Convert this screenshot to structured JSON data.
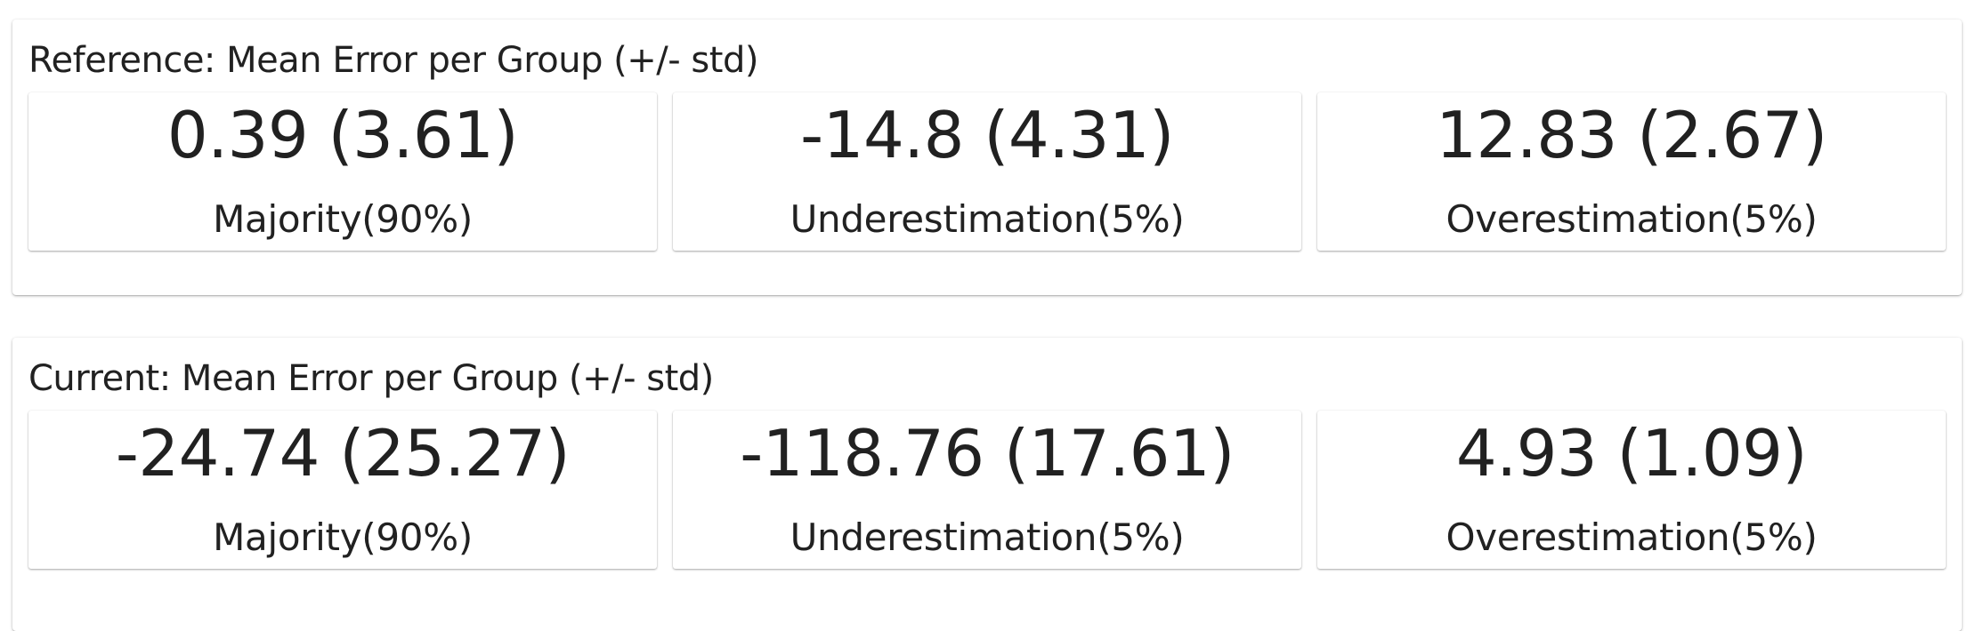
{
  "panels": [
    {
      "title": "Reference: Mean Error per Group (+/- std)",
      "cards": [
        {
          "value": "0.39 (3.61)",
          "label": "Majority(90%)"
        },
        {
          "value": "-14.8 (4.31)",
          "label": "Underestimation(5%)"
        },
        {
          "value": "12.83 (2.67)",
          "label": "Overestimation(5%)"
        }
      ]
    },
    {
      "title": "Current: Mean Error per Group (+/- std)",
      "cards": [
        {
          "value": "-24.74 (25.27)",
          "label": "Majority(90%)"
        },
        {
          "value": "-118.76 (17.61)",
          "label": "Underestimation(5%)"
        },
        {
          "value": "4.93 (1.09)",
          "label": "Overestimation(5%)"
        }
      ]
    }
  ]
}
